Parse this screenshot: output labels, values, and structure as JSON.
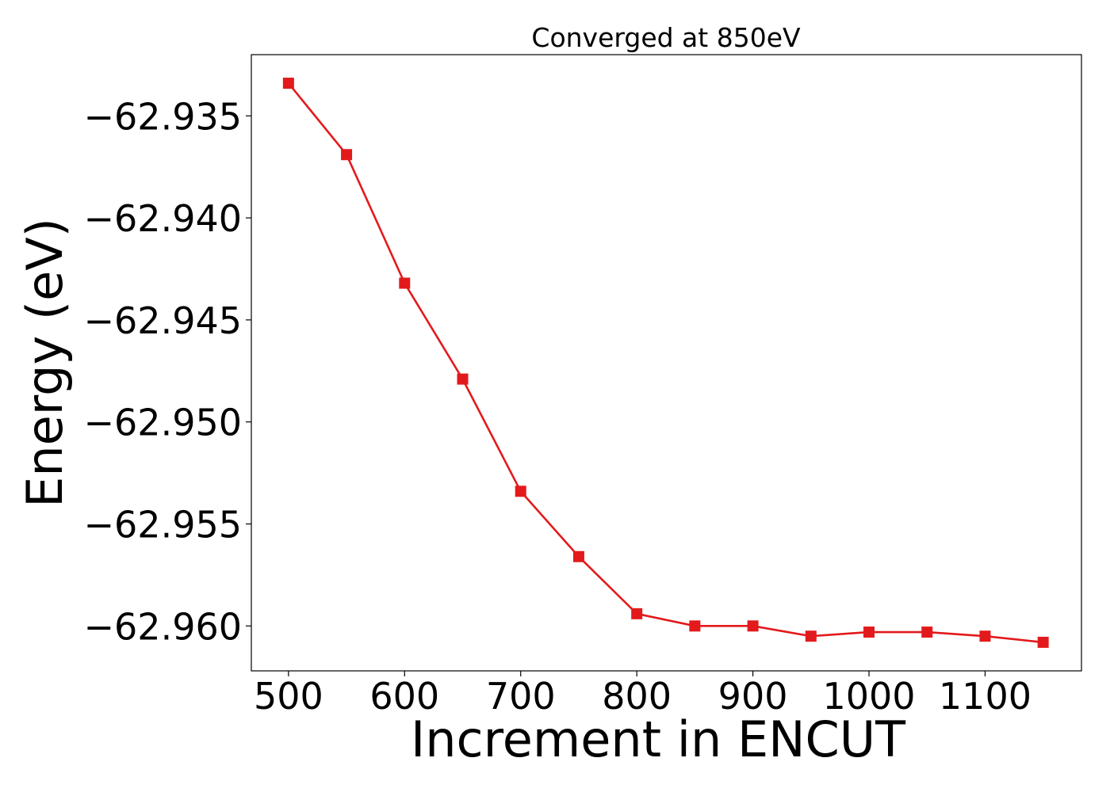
{
  "chart_data": {
    "type": "line",
    "title": "Converged at 850eV",
    "xlabel": "Increment in ENCUT",
    "ylabel": "Energy (eV)",
    "xlim": [
      468,
      1183
    ],
    "ylim": [
      -62.9622,
      -62.932
    ],
    "x_ticks": [
      500,
      600,
      700,
      800,
      900,
      1000,
      1100
    ],
    "x_tick_labels": [
      "500",
      "600",
      "700",
      "800",
      "900",
      "1000",
      "1100"
    ],
    "y_ticks": [
      -62.935,
      -62.94,
      -62.945,
      -62.95,
      -62.955,
      -62.96
    ],
    "y_tick_labels": [
      "−62.935",
      "−62.940",
      "−62.945",
      "−62.950",
      "−62.955",
      "−62.960"
    ],
    "grid": false,
    "legend": "none",
    "marker": "square",
    "series": [
      {
        "color": "#e31a1c",
        "x": [
          500,
          550,
          600,
          650,
          700,
          750,
          800,
          850,
          900,
          950,
          1000,
          1050,
          1100,
          1150
        ],
        "y": [
          -62.9334,
          -62.9369,
          -62.9432,
          -62.9479,
          -62.9534,
          -62.9566,
          -62.9594,
          -62.96,
          -62.96,
          -62.9605,
          -62.9603,
          -62.9603,
          -62.9605,
          -62.9608
        ]
      }
    ]
  }
}
